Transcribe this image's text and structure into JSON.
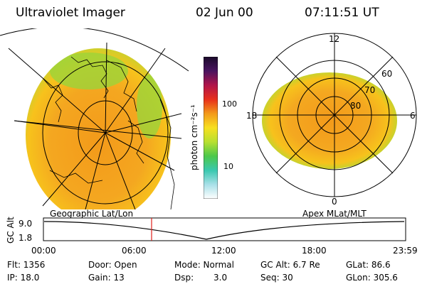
{
  "header": {
    "instrument": "Ultraviolet Imager",
    "date": "02 Jun 00",
    "time": "07:11:51 UT"
  },
  "colorbar": {
    "unit_label": "photon cm⁻²s⁻¹",
    "ticks": [
      "100",
      "10"
    ]
  },
  "polar_plot": {
    "mlt_labels": [
      "12",
      "18",
      "6",
      "0"
    ],
    "lat_labels": [
      "60",
      "70",
      "80"
    ]
  },
  "timeline": {
    "left_title": "Geographic Lat/Lon",
    "right_title": "Apex MLat/MLT",
    "axis_label": "GC Alt",
    "y_max": "9.0",
    "y_min": "1.8",
    "time_ticks": [
      "00:00",
      "06:00",
      "12:00",
      "18:00",
      "23:59"
    ]
  },
  "status": {
    "flt": "Flt: 1356",
    "ip": "IP: 18.0",
    "door": "Door: Open",
    "gain": "Gain: 13",
    "mode": "Mode: Normal",
    "dsp_label": "Dsp:",
    "dsp_value": "3.0",
    "gc_alt": "GC Alt: 6.7 Re",
    "seq": "Seq: 30",
    "glat": "GLat: 86.6",
    "glon": "GLon: 305.6"
  },
  "colors": {
    "aurora_core": "#f39a1a",
    "aurora_mid": "#f7c21c",
    "aurora_edge": "#9bd53a",
    "marker_line": "#e0201a"
  }
}
